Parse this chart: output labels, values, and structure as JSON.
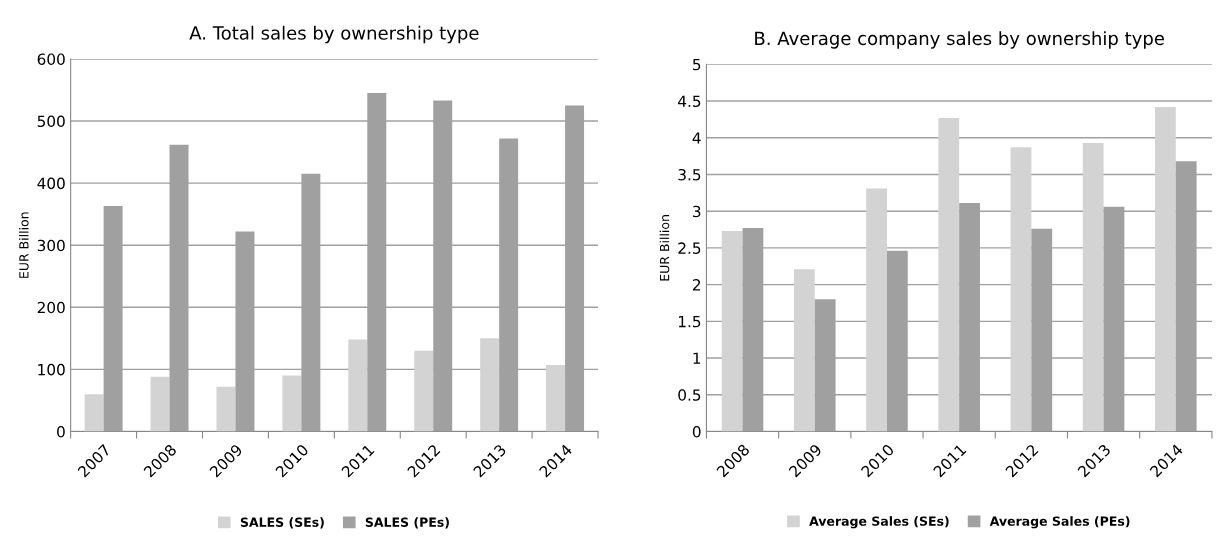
{
  "chart_data": [
    {
      "type": "bar",
      "title": "A. Total sales by ownership type",
      "ylabel": "EUR Billion",
      "categories": [
        "2007",
        "2008",
        "2009",
        "2010",
        "2011",
        "2012",
        "2013",
        "2014"
      ],
      "series": [
        {
          "name": "SALES (SEs)",
          "color": "#d3d3d3",
          "values": [
            60,
            88,
            72,
            90,
            148,
            130,
            150,
            107
          ]
        },
        {
          "name": "SALES (PEs)",
          "color": "#a0a0a0",
          "values": [
            363,
            462,
            322,
            415,
            545,
            533,
            472,
            525
          ]
        }
      ],
      "ylim": [
        0,
        600
      ],
      "yticks": [
        0,
        100,
        200,
        300,
        400,
        500,
        600
      ],
      "grid": "y",
      "legend": "bottom"
    },
    {
      "type": "bar",
      "title": "B. Average company sales by ownership type",
      "ylabel": "EUR Billion",
      "categories": [
        "2008",
        "2009",
        "2010",
        "2011",
        "2012",
        "2013",
        "2014"
      ],
      "series": [
        {
          "name": "Average Sales (SEs)",
          "color": "#d3d3d3",
          "values": [
            2.73,
            2.21,
            3.31,
            4.27,
            3.87,
            3.93,
            4.42
          ]
        },
        {
          "name": "Average Sales (PEs)",
          "color": "#a0a0a0",
          "values": [
            2.77,
            1.8,
            2.46,
            3.11,
            2.76,
            3.06,
            3.68
          ]
        }
      ],
      "ylim": [
        0,
        5
      ],
      "yticks": [
        0,
        0.5,
        1,
        1.5,
        2,
        2.5,
        3,
        3.5,
        4,
        4.5,
        5
      ],
      "grid": "y",
      "legend": "bottom"
    }
  ]
}
